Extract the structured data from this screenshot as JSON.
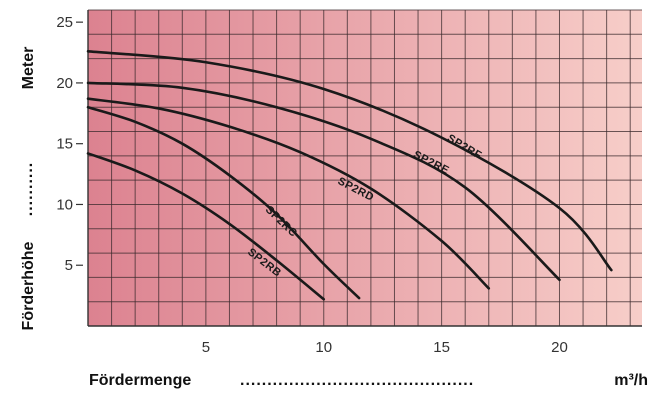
{
  "chart_data": {
    "type": "line",
    "xlabel": "Fördermenge",
    "xunit": "m³/h",
    "ylabel": "Förderhöhe",
    "yunit": "Meter",
    "xlim": [
      0,
      23.5
    ],
    "ylim": [
      0,
      26
    ],
    "x_ticks": [
      5,
      10,
      15,
      20
    ],
    "y_ticks": [
      5,
      10,
      15,
      20,
      25
    ],
    "grid": true,
    "colors": {
      "bg_left": "#dc8290",
      "bg_right": "#f7cec9",
      "grid": "#3a2a2c",
      "line": "#1a1a1a"
    },
    "series": [
      {
        "name": "SP2RB",
        "x": [
          0,
          2,
          4,
          6,
          8,
          10
        ],
        "y": [
          14.2,
          12.8,
          10.9,
          8.4,
          5.4,
          2.2
        ],
        "label_x": 7.4,
        "label_y": 5.0
      },
      {
        "name": "SP2RC",
        "x": [
          0,
          2,
          4,
          6,
          8,
          10,
          11.5
        ],
        "y": [
          18.0,
          16.8,
          15.0,
          12.4,
          9.2,
          5.1,
          2.3
        ],
        "label_x": 8.1,
        "label_y": 8.4
      },
      {
        "name": "SP2RD",
        "x": [
          0,
          3,
          6,
          9,
          12,
          15,
          17
        ],
        "y": [
          18.7,
          17.9,
          16.4,
          14.3,
          11.3,
          7.0,
          3.1
        ],
        "label_x": 11.3,
        "label_y": 11.0
      },
      {
        "name": "SP2RE",
        "x": [
          0,
          4,
          8,
          12,
          16,
          20
        ],
        "y": [
          20.0,
          19.6,
          18.0,
          15.4,
          11.4,
          3.8
        ],
        "label_x": 14.5,
        "label_y": 13.2
      },
      {
        "name": "SP2RF",
        "x": [
          0,
          5,
          10,
          15,
          20,
          22.2
        ],
        "y": [
          22.6,
          21.7,
          19.5,
          15.5,
          9.7,
          4.6
        ],
        "label_x": 15.9,
        "label_y": 14.5
      }
    ]
  }
}
